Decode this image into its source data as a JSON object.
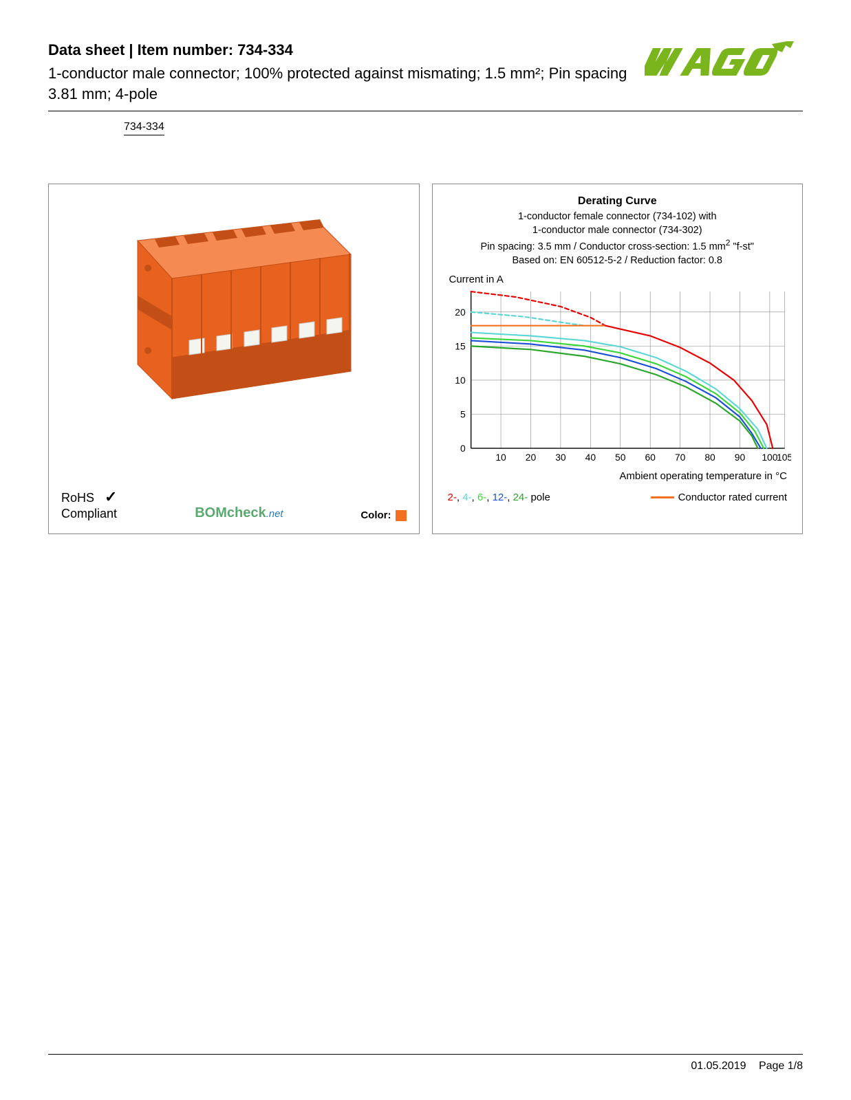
{
  "header": {
    "title_prefix": "Data sheet",
    "title_sep": "  |  ",
    "title_item_label": "Item number:",
    "item_number": "734-334",
    "subtitle": "1-conductor male connector; 100% protected against mismating; 1.5 mm²; Pin spacing 3.81 mm; 4-pole",
    "item_link": "734-334"
  },
  "logo": {
    "text": "WAGO",
    "fill": "#7ab51d",
    "accent": "#5a8a16"
  },
  "product_panel": {
    "rohs_line1": "RoHS",
    "rohs_line2": "Compliant",
    "check_glyph": "✓",
    "bom_text": "BOM",
    "check_text": "check",
    "net_text": ".net",
    "color_label": "Color:",
    "color_swatch": "#f37021",
    "connector_color": "#e8621f",
    "connector_color_dark": "#c44f16",
    "connector_color_light": "#f58a52"
  },
  "chart": {
    "title": "Derating Curve",
    "line1": "1-conductor female connector (734-102) with",
    "line2": "1-conductor male connector (734-302)",
    "line3_a": "Pin spacing: 3.5 mm / Conductor cross-section: 1.5 mm",
    "line3_sup": "2",
    "line3_b": " \"f-st\"",
    "line4": "Based on: EN 60512-5-2 / Reduction factor: 0.8",
    "y_axis_label": "Current in A",
    "x_axis_label": "Ambient operating temperature in °C",
    "x_min": 0,
    "x_max": 105,
    "y_min": 0,
    "y_max": 23,
    "x_ticks": [
      10,
      20,
      30,
      40,
      50,
      60,
      70,
      80,
      90,
      100,
      105
    ],
    "y_ticks": [
      0,
      5,
      10,
      15,
      20
    ],
    "grid_color": "#888888",
    "axis_color": "#000000",
    "background": "#ffffff",
    "series": [
      {
        "name": "2-pole",
        "color": "#e60000",
        "dash": "6 4",
        "points": [
          [
            0,
            23
          ],
          [
            15,
            22.2
          ],
          [
            30,
            20.8
          ],
          [
            40,
            19.2
          ],
          [
            45,
            18
          ]
        ]
      },
      {
        "name": "4-pole",
        "color": "#5dd6d6",
        "dash": "6 4",
        "points": [
          [
            0,
            20
          ],
          [
            18,
            19.3
          ],
          [
            30,
            18.5
          ],
          [
            38,
            18
          ]
        ]
      },
      {
        "name": "conductor-rated",
        "color": "#f37021",
        "dash": "none",
        "points": [
          [
            0,
            18
          ],
          [
            45,
            18
          ]
        ]
      },
      {
        "name": "2-pole-solid",
        "color": "#e60000",
        "dash": "none",
        "points": [
          [
            45,
            18
          ],
          [
            60,
            16.5
          ],
          [
            70,
            14.8
          ],
          [
            80,
            12.5
          ],
          [
            88,
            10
          ],
          [
            94,
            7
          ],
          [
            99,
            3.5
          ],
          [
            101,
            0
          ]
        ]
      },
      {
        "name": "4-pole-solid",
        "color": "#5dd6d6",
        "dash": "none",
        "points": [
          [
            0,
            17
          ],
          [
            20,
            16.5
          ],
          [
            38,
            15.8
          ],
          [
            50,
            14.9
          ],
          [
            62,
            13.3
          ],
          [
            72,
            11.3
          ],
          [
            82,
            8.7
          ],
          [
            90,
            5.8
          ],
          [
            96,
            2.8
          ],
          [
            99,
            0
          ]
        ]
      },
      {
        "name": "6-pole",
        "color": "#3cd63c",
        "dash": "none",
        "points": [
          [
            0,
            16.2
          ],
          [
            20,
            15.8
          ],
          [
            38,
            15
          ],
          [
            50,
            14
          ],
          [
            62,
            12.4
          ],
          [
            72,
            10.5
          ],
          [
            82,
            8
          ],
          [
            90,
            5.2
          ],
          [
            95,
            2.5
          ],
          [
            98,
            0
          ]
        ]
      },
      {
        "name": "12-pole",
        "color": "#1a4fd6",
        "dash": "none",
        "points": [
          [
            0,
            15.8
          ],
          [
            20,
            15.3
          ],
          [
            38,
            14.4
          ],
          [
            50,
            13.3
          ],
          [
            62,
            11.7
          ],
          [
            72,
            9.8
          ],
          [
            82,
            7.4
          ],
          [
            90,
            4.6
          ],
          [
            94,
            2.2
          ],
          [
            97,
            0
          ]
        ]
      },
      {
        "name": "24-pole",
        "color": "#2aa62a",
        "dash": "none",
        "points": [
          [
            0,
            15
          ],
          [
            20,
            14.5
          ],
          [
            38,
            13.5
          ],
          [
            50,
            12.4
          ],
          [
            62,
            10.8
          ],
          [
            72,
            9
          ],
          [
            82,
            6.6
          ],
          [
            90,
            4
          ],
          [
            94,
            1.8
          ],
          [
            96,
            0
          ]
        ]
      }
    ],
    "legend_poles": [
      {
        "text": "2-",
        "color": "#e60000"
      },
      {
        "text": "4-",
        "color": "#5dd6d6"
      },
      {
        "text": "6-",
        "color": "#3cd63c"
      },
      {
        "text": "12-",
        "color": "#1a4fd6"
      },
      {
        "text": "24-",
        "color": "#2aa62a"
      }
    ],
    "legend_poles_suffix": " pole",
    "legend_conductor": "Conductor rated current",
    "legend_conductor_color": "#f37021",
    "tick_fontsize": 14
  },
  "footer": {
    "date": "01.05.2019",
    "page": "Page 1/8"
  }
}
